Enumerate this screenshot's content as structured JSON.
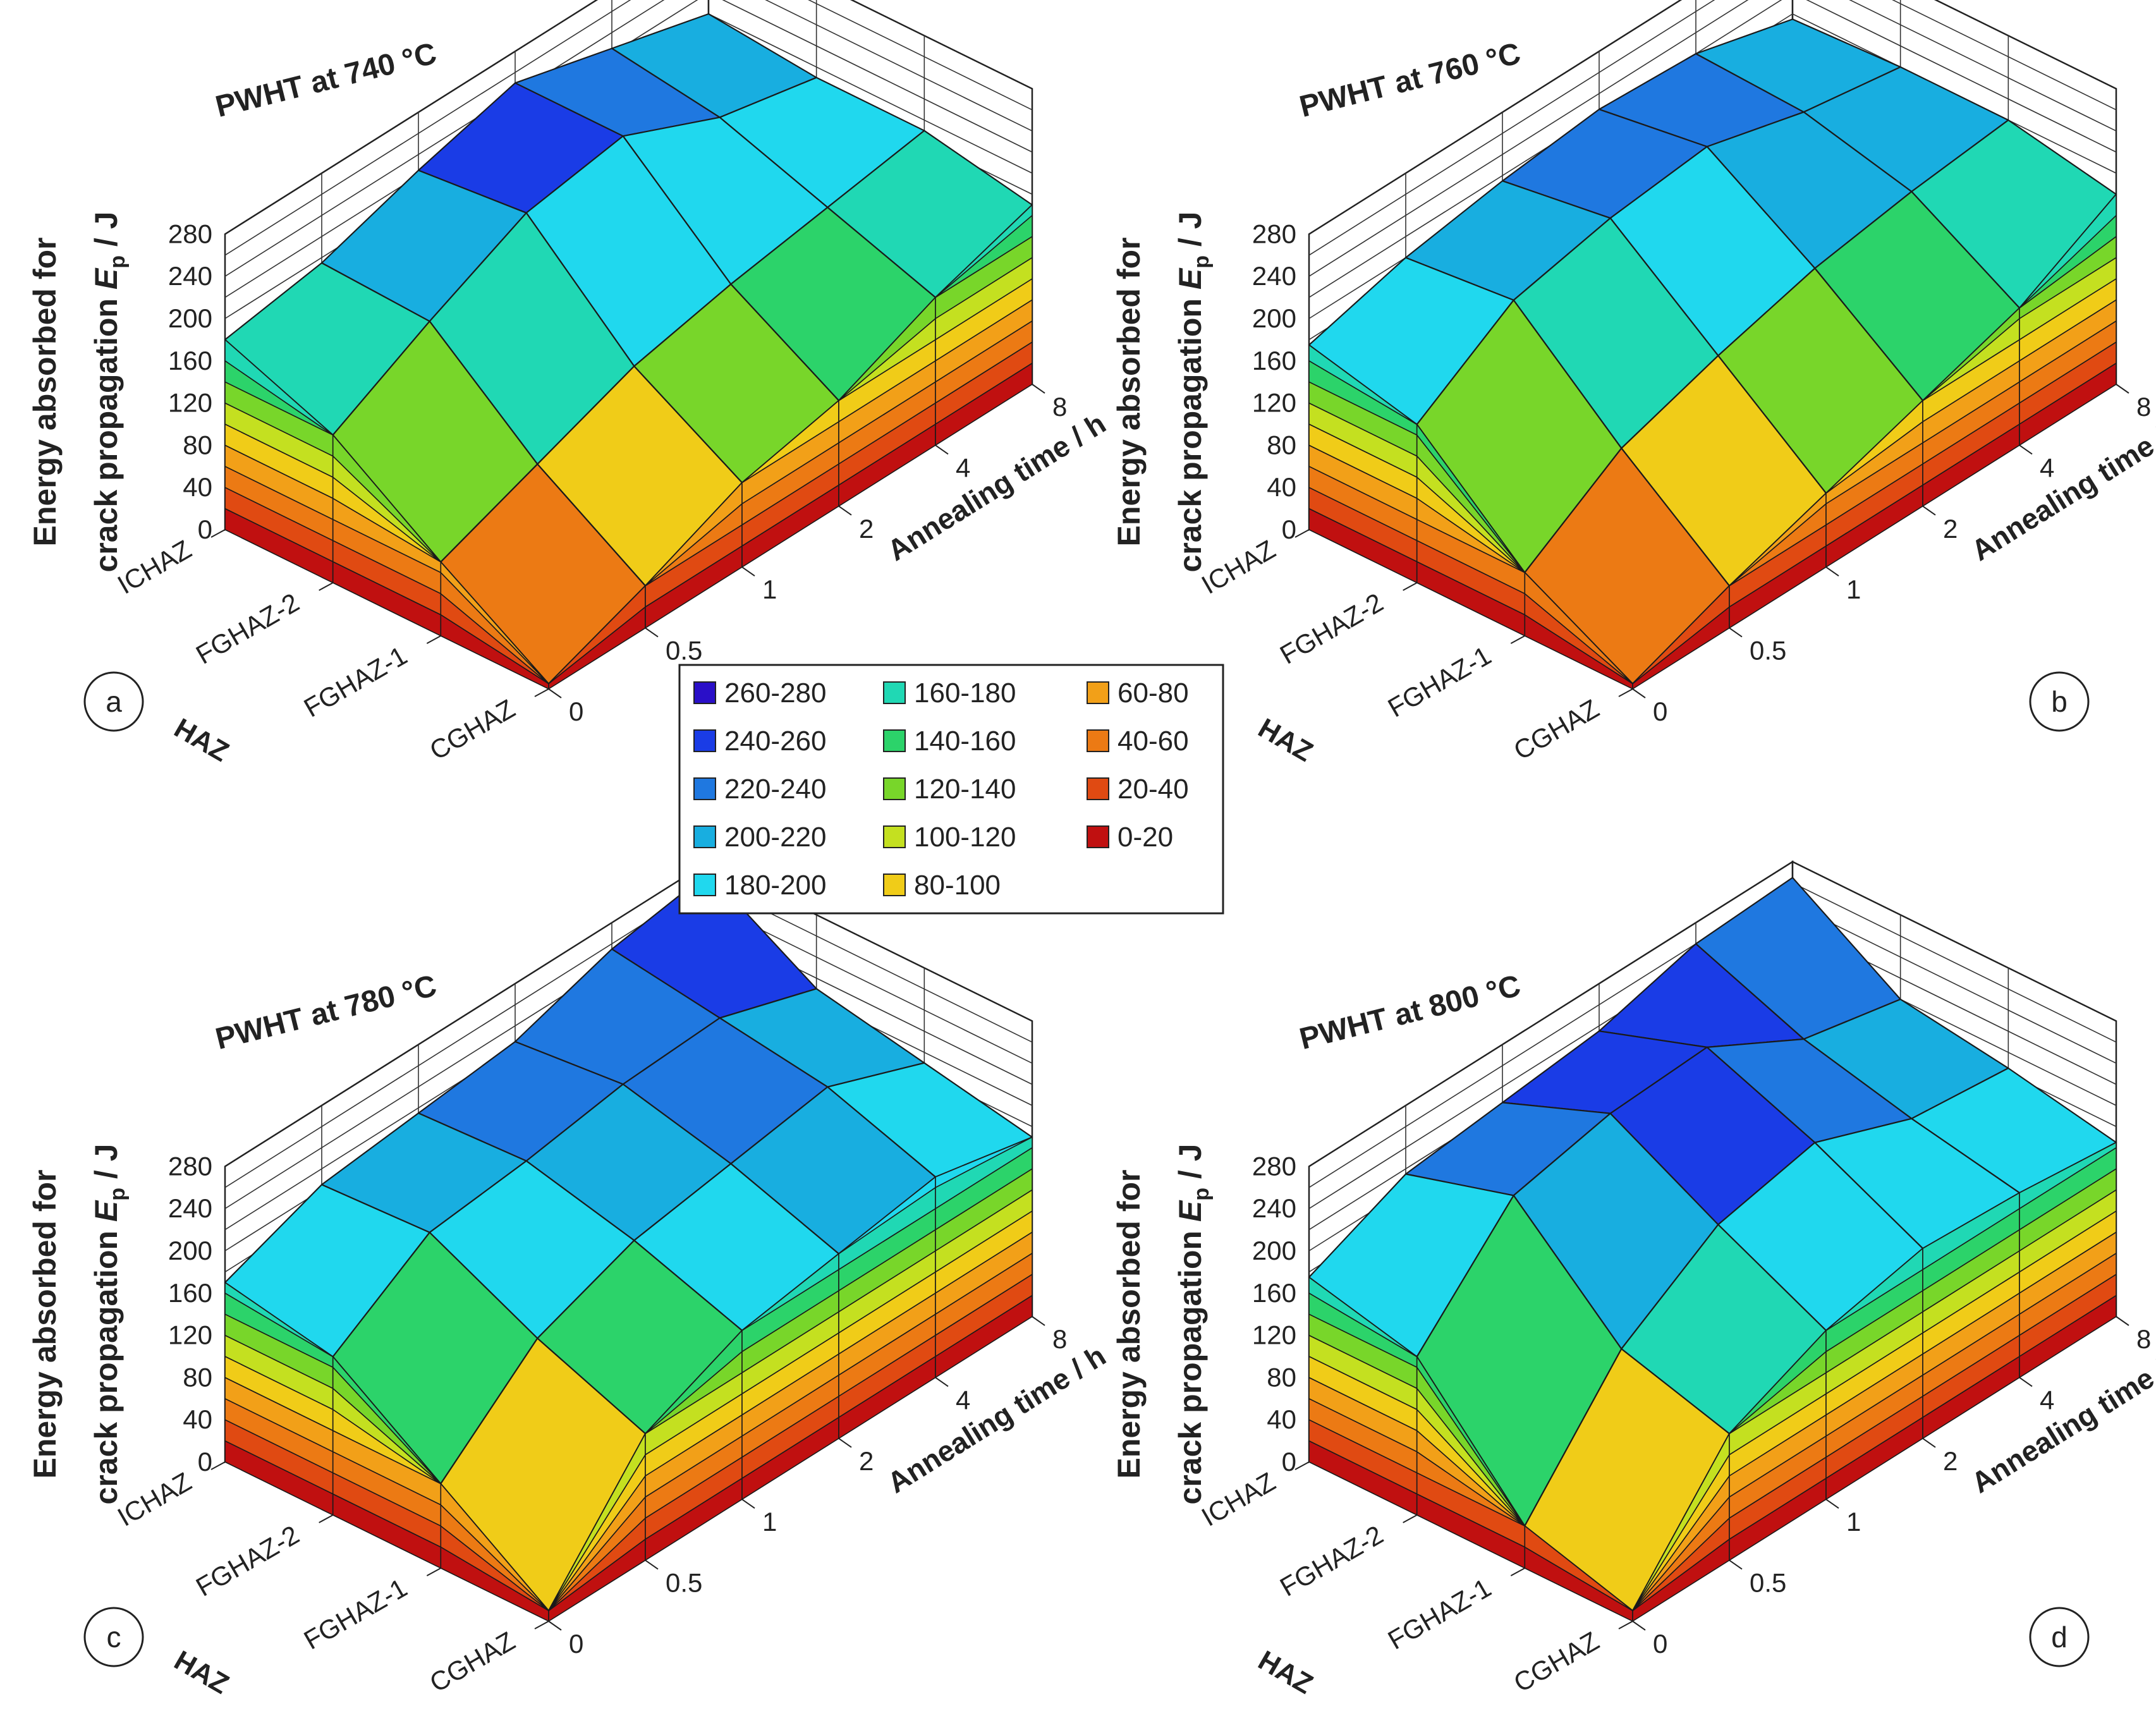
{
  "chart_data": [
    {
      "type": "surface3d",
      "panel_label": "a",
      "title": "PWHT at 740 °C",
      "zlabel": "Energy absorbed for crack propagation E_p / J",
      "zlabel_line1": "Energy absorbed for",
      "zlabel_line2": "crack propagation",
      "zlabel_symbol": "E",
      "zlabel_subscript": "p",
      "zlabel_unit": " / J",
      "xlabel": "HAZ",
      "ylabel": "Annealing time / h",
      "x_categories": [
        "ICHAZ",
        "FGHAZ-2",
        "FGHAZ-1",
        "CGHAZ"
      ],
      "y_categories": [
        "0",
        "0.5",
        "1",
        "2",
        "4",
        "8"
      ],
      "z_ticks": [
        "0",
        "40",
        "80",
        "120",
        "160",
        "200",
        "240",
        "280"
      ],
      "zlim": [
        0,
        280
      ],
      "values": [
        [
          180,
          195,
          225,
          250,
          225,
          200
        ],
        [
          140,
          190,
          235,
          250,
          210,
          190
        ],
        [
          70,
          105,
          140,
          160,
          175,
          190
        ],
        [
          5,
          40,
          80,
          100,
          140,
          170
        ]
      ]
    },
    {
      "type": "surface3d",
      "panel_label": "b",
      "title": "PWHT at 760 °C",
      "zlabel": "Energy absorbed for crack propagation E_p / J",
      "zlabel_line1": "Energy absorbed for",
      "zlabel_line2": "crack propagation",
      "zlabel_symbol": "E",
      "zlabel_subscript": "p",
      "zlabel_unit": " / J",
      "xlabel": "HAZ",
      "ylabel": "Annealing time / h",
      "x_categories": [
        "ICHAZ",
        "FGHAZ-2",
        "FGHAZ-1",
        "CGHAZ"
      ],
      "y_categories": [
        "0",
        "0.5",
        "1",
        "2",
        "4",
        "8"
      ],
      "z_ticks": [
        "0",
        "40",
        "80",
        "120",
        "160",
        "200",
        "240",
        "280"
      ],
      "zlim": [
        0,
        280
      ],
      "values": [
        [
          175,
          200,
          215,
          225,
          220,
          195
        ],
        [
          150,
          210,
          230,
          240,
          215,
          200
        ],
        [
          60,
          120,
          150,
          175,
          190,
          200
        ],
        [
          5,
          40,
          70,
          100,
          130,
          180
        ]
      ]
    },
    {
      "type": "surface3d",
      "panel_label": "c",
      "title": "PWHT at 780 °C",
      "zlabel": "Energy absorbed for crack propagation E_p / J",
      "zlabel_line1": "Energy absorbed for",
      "zlabel_line2": "crack propagation",
      "zlabel_symbol": "E",
      "zlabel_subscript": "p",
      "zlabel_unit": " / J",
      "xlabel": "HAZ",
      "ylabel": "Annealing time / h",
      "x_categories": [
        "ICHAZ",
        "FGHAZ-2",
        "FGHAZ-1",
        "CGHAZ"
      ],
      "y_categories": [
        "0",
        "0.5",
        "1",
        "2",
        "4",
        "8"
      ],
      "z_ticks": [
        "0",
        "40",
        "80",
        "120",
        "160",
        "200",
        "240",
        "280"
      ],
      "zlim": [
        0,
        280
      ],
      "values": [
        [
          170,
          205,
          215,
          225,
          255,
          270
        ],
        [
          150,
          210,
          220,
          235,
          240,
          210
        ],
        [
          80,
          160,
          195,
          210,
          225,
          190
        ],
        [
          10,
          120,
          160,
          175,
          190,
          170
        ]
      ]
    },
    {
      "type": "surface3d",
      "panel_label": "d",
      "title": "PWHT at 800 °C",
      "zlabel": "Energy absorbed for crack propagation E_p / J",
      "zlabel_line1": "Energy absorbed for",
      "zlabel_line2": "crack propagation",
      "zlabel_symbol": "E",
      "zlabel_subscript": "p",
      "zlabel_unit": " / J",
      "xlabel": "HAZ",
      "ylabel": "Annealing time / h",
      "x_categories": [
        "ICHAZ",
        "FGHAZ-2",
        "FGHAZ-1",
        "CGHAZ"
      ],
      "y_categories": [
        "0",
        "0.5",
        "1",
        "2",
        "4",
        "8"
      ],
      "z_ticks": [
        "0",
        "40",
        "80",
        "120",
        "160",
        "200",
        "240",
        "280"
      ],
      "zlim": [
        0,
        280
      ],
      "values": [
        [
          175,
          215,
          225,
          235,
          260,
          265
        ],
        [
          150,
          245,
          265,
          270,
          220,
          200
        ],
        [
          40,
          150,
          210,
          230,
          195,
          185
        ],
        [
          10,
          120,
          160,
          180,
          175,
          165
        ]
      ]
    }
  ],
  "legend": {
    "title": "",
    "entries": [
      {
        "label": "260-280",
        "color": "#2a0fc8"
      },
      {
        "label": "240-260",
        "color": "#1a3ce6"
      },
      {
        "label": "220-240",
        "color": "#1f78e0"
      },
      {
        "label": "200-220",
        "color": "#18aee0"
      },
      {
        "label": "180-200",
        "color": "#20d8ee"
      },
      {
        "label": "160-180",
        "color": "#20d8b4"
      },
      {
        "label": "140-160",
        "color": "#2cd36a"
      },
      {
        "label": "120-140",
        "color": "#78d62a"
      },
      {
        "label": "100-120",
        "color": "#c4e020"
      },
      {
        "label": "80-100",
        "color": "#f0cc18"
      },
      {
        "label": "60-80",
        "color": "#f2a018"
      },
      {
        "label": "40-60",
        "color": "#ec7a14"
      },
      {
        "label": "20-40",
        "color": "#e04a12"
      },
      {
        "label": "0-20",
        "color": "#c01010"
      }
    ]
  }
}
